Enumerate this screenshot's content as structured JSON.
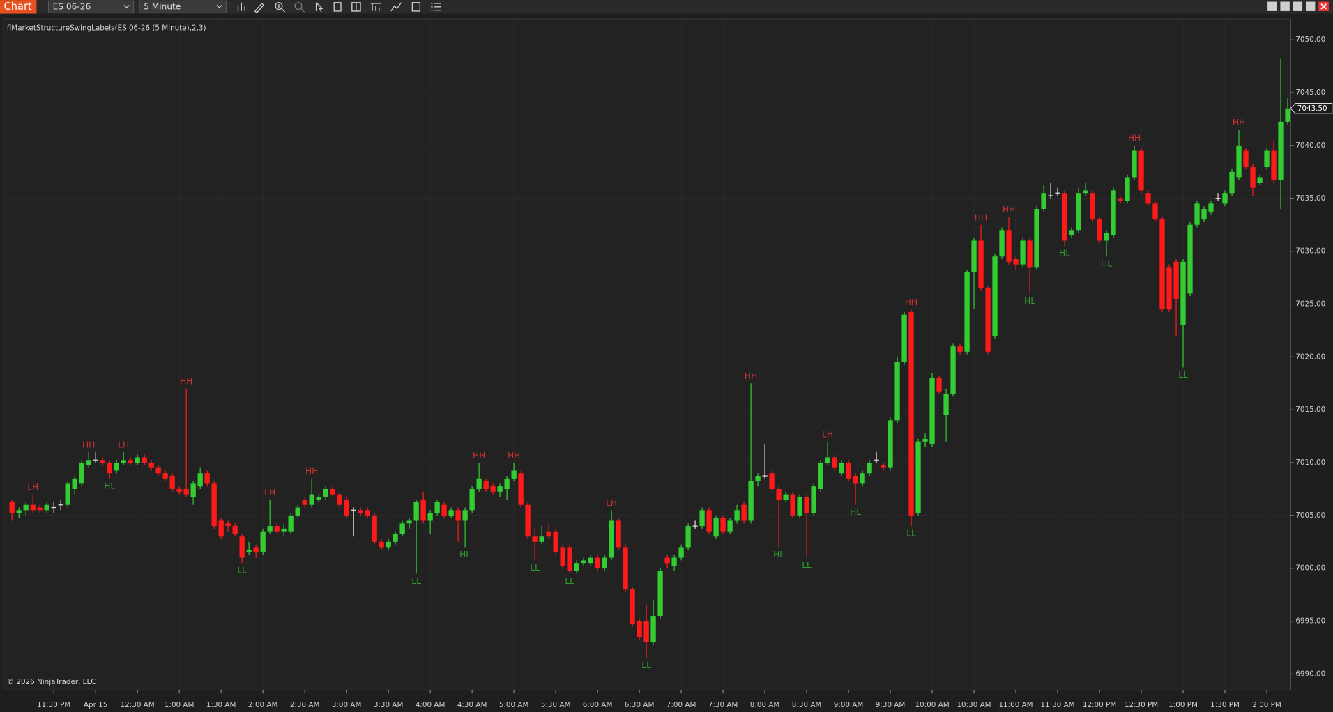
{
  "toolbar": {
    "app_tab": "Chart",
    "instrument": "ES 06-26",
    "interval": "5 Minute"
  },
  "footer": {
    "copyright": "© 2026 NinjaTrader, LLC"
  },
  "chart_data": {
    "type": "candlestick",
    "title": "flMarketStructureSwingLabels(ES 06-26 (5 Minute),2,3)",
    "up_color": "#33cc33",
    "down_color": "#ff1a1a",
    "doji_color": "#e0e0e0",
    "high_label_color": "#cc3333",
    "low_label_color": "#2e9e2e",
    "grid": true,
    "ylim": [
      6988.5,
      7052
    ],
    "yticks": [
      {
        "value": 6990,
        "label": "6990.00"
      },
      {
        "value": 6995,
        "label": "6995.00"
      },
      {
        "value": 7000,
        "label": "7000.00"
      },
      {
        "value": 7005,
        "label": "7005.00"
      },
      {
        "value": 7010,
        "label": "7010.00"
      },
      {
        "value": 7015,
        "label": "7015.00"
      },
      {
        "value": 7020,
        "label": "7020.00"
      },
      {
        "value": 7025,
        "label": "7025.00"
      },
      {
        "value": 7030,
        "label": "7030.00"
      },
      {
        "value": 7035,
        "label": "7035.00"
      },
      {
        "value": 7040,
        "label": "7040.00"
      },
      {
        "value": 7045,
        "label": "7045.00"
      },
      {
        "value": 7050,
        "label": "7050.00"
      }
    ],
    "last_price": {
      "value": 7043.5,
      "label": "7043.50"
    },
    "categories": [
      null,
      null,
      null,
      null,
      null,
      null,
      "11:30 PM",
      null,
      null,
      null,
      null,
      null,
      "Apr 15",
      null,
      null,
      null,
      null,
      null,
      "12:30 AM",
      null,
      null,
      null,
      null,
      null,
      "1:00 AM",
      null,
      null,
      null,
      null,
      null,
      "1:30 AM",
      null,
      null,
      null,
      null,
      null,
      "2:00 AM",
      null,
      null,
      null,
      null,
      null,
      "2:30 AM",
      null,
      null,
      null,
      null,
      null,
      "3:00 AM",
      null,
      null,
      null,
      null,
      null,
      "3:30 AM",
      null,
      null,
      null,
      null,
      null,
      "4:00 AM",
      null,
      null,
      null,
      null,
      null,
      "4:30 AM",
      null,
      null,
      null,
      null,
      null,
      "5:00 AM",
      null,
      null,
      null,
      null,
      null,
      "5:30 AM",
      null,
      null,
      null,
      null,
      null,
      "6:00 AM",
      null,
      null,
      null,
      null,
      null,
      "6:30 AM",
      null,
      null,
      null,
      null,
      null,
      "7:00 AM",
      null,
      null,
      null,
      null,
      null,
      "7:30 AM",
      null,
      null,
      null,
      null,
      null,
      "8:00 AM",
      null,
      null,
      null,
      null,
      null,
      "8:30 AM",
      null,
      null,
      null,
      null,
      null,
      "9:00 AM",
      null,
      null,
      null,
      null,
      null,
      "9:30 AM",
      null,
      null,
      null,
      null,
      null,
      "10:00 AM",
      null,
      null,
      null,
      null,
      null,
      "10:30 AM",
      null,
      null,
      null,
      null,
      null,
      "11:00 AM",
      null,
      null,
      null,
      null,
      null,
      "11:30 AM",
      null,
      null,
      null,
      null,
      null,
      "12:00 PM",
      null,
      null,
      null,
      null,
      null,
      "12:30 PM",
      null,
      null,
      null,
      null,
      null,
      "1:00 PM",
      null,
      null,
      null,
      null,
      null,
      "1:30 PM",
      null,
      null,
      null,
      null,
      null,
      "2:00 PM",
      null,
      null,
      null
    ],
    "open": [
      7006.25,
      7005.25,
      7005.5,
      7006,
      7005.75,
      7005.5,
      7005.75,
      7006,
      7006,
      7007.5,
      7008,
      7009.75,
      7010.25,
      7010.25,
      7010,
      7009.25,
      7010,
      7010.25,
      7010,
      7010.5,
      7010,
      7009.5,
      7009,
      7008.75,
      7007.5,
      7007.5,
      7006.75,
      7007.75,
      7009,
      7008,
      7004.5,
      7004.25,
      7004,
      7003,
      7001.5,
      7002,
      7001.5,
      7003.5,
      7004,
      7003.5,
      7003.5,
      7005,
      7006.5,
      7006,
      7006.5,
      7006.75,
      7007.5,
      7007,
      7006.5,
      7005.5,
      7005.5,
      7005.5,
      7005,
      7002.5,
      7002,
      7002.5,
      7003.25,
      7004.25,
      7004.5,
      7006.5,
      7004.5,
      7005.25,
      7006,
      7005,
      7005.5,
      7004.5,
      7005.5,
      7007.5,
      7008.25,
      7007.75,
      7007.25,
      7007.5,
      7008.5,
      7009,
      7006,
      7003,
      7002.5,
      7003.5,
      7003.5,
      7002,
      7002,
      6999.75,
      7000.5,
      7000.5,
      7001,
      7000,
      7001,
      7004.5,
      7002,
      6998,
      6995,
      6995,
      6993,
      6995.5,
      7001,
      7000.25,
      7001,
      7002,
      7004,
      7004,
      7005.5,
      7003,
      7004.75,
      7003.5,
      7004.5,
      7006,
      7004.5,
      7008.25,
      7008.75,
      7009,
      7007.5,
      7006.5,
      7007,
      7005,
      7006.75,
      7005.25,
      7007.5,
      7010,
      7010.5,
      7009,
      7010,
      7008.75,
      7008,
      7009,
      7010.25,
      7009.75,
      7009.5,
      7014,
      7019.5,
      7024.25,
      7005.25,
      7012,
      7011.75,
      7018,
      7014.5,
      7016.5,
      7021,
      7020.5,
      7028,
      7031,
      7026.5,
      7022,
      7029.5,
      7032,
      7029.25,
      7028.75,
      7031,
      7028.5,
      7034,
      7035.25,
      7035.5,
      7035.5,
      7031.5,
      7032,
      7035.5,
      7035.5,
      7033,
      7031,
      7031.5,
      7035,
      7034.75,
      7037,
      7039.5,
      7035.5,
      7034.5,
      7033,
      7028.5,
      7029,
      7023,
      7026,
      7032.5,
      7033,
      7033.75,
      7035,
      7034.5,
      7035.5,
      7037,
      7039.5,
      7038,
      7036.5,
      7038,
      7039.5,
      7036.75,
      7042.25
    ],
    "high": [
      7006.5,
      7005.75,
      7006.25,
      7007,
      7006,
      7006.25,
      7006.25,
      7006.5,
      7008.25,
      7008.75,
      7010.25,
      7011,
      7011,
      7010.5,
      7010.25,
      7010.25,
      7011,
      7010.5,
      7010.75,
      7010.75,
      7010.25,
      7009.75,
      7009.25,
      7009,
      7007.75,
      7017,
      7008.25,
      7009.5,
      7009.25,
      7008.25,
      7004.75,
      7004.5,
      7004.25,
      7003.25,
      7002.5,
      7002.25,
      7003.75,
      7006.5,
      7004.25,
      7004.25,
      7005.25,
      7006,
      7006.75,
      7008.5,
      7007,
      7007.75,
      7007.75,
      7007.25,
      7006.75,
      7005.75,
      7005.75,
      7005.75,
      7005.25,
      7002.75,
      7002.75,
      7003.5,
      7004.5,
      7004.75,
      7006.5,
      7007.25,
      7005.5,
      7006.5,
      7006.25,
      7005.75,
      7005.75,
      7005.75,
      7007.75,
      7010,
      7008.5,
      7008,
      7008,
      7008.75,
      7010,
      7009.25,
      7006.25,
      7003.75,
      7004,
      7004.25,
      7003.75,
      7002.25,
      7002.25,
      7000.75,
      7001,
      7001.25,
      7001.25,
      7001.25,
      7005.5,
      7004.75,
      7002.25,
      6998.25,
      6995.25,
      6996.5,
      6997,
      7000,
      7001.25,
      7001.25,
      7002.25,
      7004.25,
      7004.5,
      7005.75,
      7005.75,
      7005,
      7005,
      7004.75,
      7006,
      7006.25,
      7017.5,
      7009,
      7011.75,
      7009.25,
      7007.75,
      7007.25,
      7007.25,
      7007,
      7007,
      7008,
      7010.25,
      7012,
      7010.75,
      7010.25,
      7010.25,
      7009,
      7009.25,
      7010.25,
      7011,
      7010,
      7014.25,
      7020,
      7024.25,
      7024.5,
      7012.25,
      7012.75,
      7018.5,
      7018.25,
      7017,
      7021.25,
      7021.25,
      7028.25,
      7031.25,
      7032.5,
      7026.75,
      7029.75,
      7032.25,
      7033.25,
      7029.5,
      7031.25,
      7031.25,
      7034.25,
      7036.25,
      7036.5,
      7036,
      7035.75,
      7032.25,
      7036,
      7036.5,
      7035.75,
      7033.25,
      7032,
      7036,
      7035.25,
      7037.25,
      7040,
      7039.75,
      7035.75,
      7034.75,
      7033.25,
      7028.75,
      7029.25,
      7029.25,
      7032.75,
      7034.75,
      7034.25,
      7034.75,
      7035.5,
      7035.75,
      7037.75,
      7041.5,
      7039.75,
      7038.25,
      7037.25,
      7039.75,
      7040.5,
      7048.25,
      7044.5
    ],
    "low": [
      7004.5,
      7004.75,
      7005,
      7005.25,
      7005.25,
      7005.25,
      7005.25,
      7005.5,
      7005.75,
      7007,
      7007.75,
      7009.5,
      7010,
      7009.75,
      7008.5,
      7009,
      7009.75,
      7009.75,
      7009.75,
      7009.75,
      7009.25,
      7008.75,
      7008.25,
      7007.25,
      7007,
      7006.75,
      7006,
      7007.5,
      7007.75,
      7003.75,
      7002.75,
      7003.5,
      7003,
      7000.5,
      7001.25,
      7001,
      7001.25,
      7003.25,
      7003.25,
      7003,
      7003.25,
      7004.75,
      7005.75,
      7005.75,
      7006.25,
      7006.5,
      7006.75,
      7005.75,
      7004.75,
      7003,
      7005,
      7004.75,
      7002.25,
      7001.75,
      7001.75,
      7002.25,
      7003,
      7003.75,
      6999.5,
      7004.25,
      7003.25,
      7005,
      7004.75,
      7004.75,
      7002.5,
      7002,
      7005.25,
      7007.25,
      7007.25,
      7007,
      7006.75,
      7006.5,
      7008.25,
      7005.75,
      7002.75,
      7000.75,
      7002.25,
      7002.75,
      7001.25,
      7000,
      6999.5,
      6999.5,
      7000.25,
      7000.25,
      6999.75,
      6999.75,
      7000.75,
      7001.75,
      6997.75,
      6994.5,
      6993.25,
      6991.5,
      6992.75,
      6995.25,
      7000,
      6999.75,
      7000.75,
      7001.75,
      7003.75,
      7003.75,
      7003.25,
      7002.75,
      7003.25,
      7003.25,
      7004.25,
      7004.25,
      7004.25,
      7007.75,
      7008.5,
      7007.25,
      7002,
      7006.25,
      7004.75,
      7004.75,
      7001,
      7005,
      7007.25,
      7009.75,
      7009.25,
      7008.75,
      7008.25,
      7006,
      7007.75,
      7008.75,
      7010,
      7009.25,
      7009.25,
      7013.75,
      7019.25,
      7004,
      7005,
      7011.5,
      7011.5,
      7016.5,
      7012,
      7016.25,
      7020.25,
      7020.25,
      7024.5,
      7026.25,
      7020.25,
      7021.75,
      7029.25,
      7028.75,
      7028.25,
      7028.5,
      7026,
      7028.25,
      7033.75,
      7035,
      7035.25,
      7030.5,
      7031.25,
      7031.75,
      7035.25,
      7032.75,
      7030.75,
      7029.5,
      7031.25,
      7034.5,
      7034.5,
      7036.75,
      7035.5,
      7034.25,
      7032.75,
      7024.25,
      7024.25,
      7022,
      7019,
      7025.75,
      7032.25,
      7032.75,
      7033.5,
      7034.75,
      7034.25,
      7035.25,
      7036.75,
      7037.75,
      7035.25,
      7036.25,
      7037.75,
      7036.5,
      7034,
      7042
    ],
    "close": [
      7005.25,
      7005.5,
      7006,
      7005.5,
      7005.5,
      7006,
      7005.75,
      7006,
      7008,
      7008.5,
      7010,
      7010.25,
      7010.25,
      7010,
      7009,
      7010,
      7010.25,
      7010,
      7010.5,
      7010,
      7009.5,
      7009,
      7008.5,
      7007.5,
      7007.25,
      7007,
      7008,
      7009,
      7008,
      7004,
      7003,
      7004,
      7003.25,
      7001,
      7001.75,
      7001.5,
      7003.5,
      7004,
      7003.5,
      7003.75,
      7005,
      7005.75,
      7006,
      7007,
      7006.75,
      7007.5,
      7007,
      7006,
      7005,
      7005.5,
      7005.25,
      7005,
      7002.5,
      7002,
      7002.5,
      7003.25,
      7004.25,
      7004.5,
      7006.25,
      7004.5,
      7005.25,
      7006.25,
      7005,
      7005.5,
      7004.5,
      7005.5,
      7007.5,
      7008.5,
      7007.5,
      7007.25,
      7007.75,
      7008.5,
      7009.25,
      7006,
      7003,
      7002.5,
      7003,
      7003,
      7001.5,
      7000.25,
      6999.75,
      7000.5,
      7000.75,
      7001,
      7000,
      7001,
      7004.5,
      7002,
      6998,
      6994.75,
      6993.5,
      6993,
      6995.5,
      6999.75,
      7000.5,
      7001,
      7002,
      7004,
      7004,
      7005.5,
      7003.5,
      7004.75,
      7003.5,
      7004.5,
      7005.5,
      7004.5,
      7008.25,
      7008.75,
      7008.75,
      7007.5,
      7006.5,
      7007,
      7005,
      7006.75,
      7005.25,
      7007.75,
      7010,
      7010.5,
      7009.5,
      7010,
      7008.5,
      7008,
      7009,
      7010,
      7010.25,
      7009.5,
      7014,
      7019.5,
      7024,
      7005,
      7012,
      7012.25,
      7018,
      7016.75,
      7016.5,
      7021,
      7020.5,
      7028,
      7031,
      7026.5,
      7020.5,
      7029.5,
      7032,
      7029,
      7028.75,
      7031,
      7028.5,
      7034,
      7035.5,
      7035.25,
      7035.5,
      7031,
      7032,
      7035.5,
      7035.75,
      7033,
      7031,
      7031.75,
      7035.75,
      7034.75,
      7037,
      7039.5,
      7035.75,
      7034.5,
      7033,
      7024.5,
      7024.5,
      7025.5,
      7029,
      7032.5,
      7034.5,
      7034,
      7034.5,
      7035,
      7035.5,
      7037.5,
      7040,
      7038,
      7036,
      7037,
      7039.5,
      7036.75,
      7042.25,
      7043.5
    ],
    "swing_highs": [
      {
        "text": "LH",
        "index": 3
      },
      {
        "text": "HH",
        "index": 11
      },
      {
        "text": "LH",
        "index": 16
      },
      {
        "text": "HH",
        "index": 25
      },
      {
        "text": "LH",
        "index": 37
      },
      {
        "text": "HH",
        "index": 43
      },
      {
        "text": "HH",
        "index": 67
      },
      {
        "text": "HH",
        "index": 72
      },
      {
        "text": "LH",
        "index": 86
      },
      {
        "text": "HH",
        "index": 106
      },
      {
        "text": "LH",
        "index": 117
      },
      {
        "text": "HH",
        "index": 129
      },
      {
        "text": "HH",
        "index": 139
      },
      {
        "text": "HH",
        "index": 143
      },
      {
        "text": "HH",
        "index": 161
      },
      {
        "text": "HH",
        "index": 176
      }
    ],
    "swing_lows": [
      {
        "text": "HL",
        "index": 14
      },
      {
        "text": "LL",
        "index": 33
      },
      {
        "text": "LL",
        "index": 58
      },
      {
        "text": "HL",
        "index": 65
      },
      {
        "text": "LL",
        "index": 75
      },
      {
        "text": "LL",
        "index": 80
      },
      {
        "text": "LL",
        "index": 91
      },
      {
        "text": "HL",
        "index": 110
      },
      {
        "text": "LL",
        "index": 114
      },
      {
        "text": "HL",
        "index": 121
      },
      {
        "text": "LL",
        "index": 129
      },
      {
        "text": "HL",
        "index": 146
      },
      {
        "text": "HL",
        "index": 151
      },
      {
        "text": "HL",
        "index": 157
      },
      {
        "text": "LL",
        "index": 168
      }
    ]
  }
}
